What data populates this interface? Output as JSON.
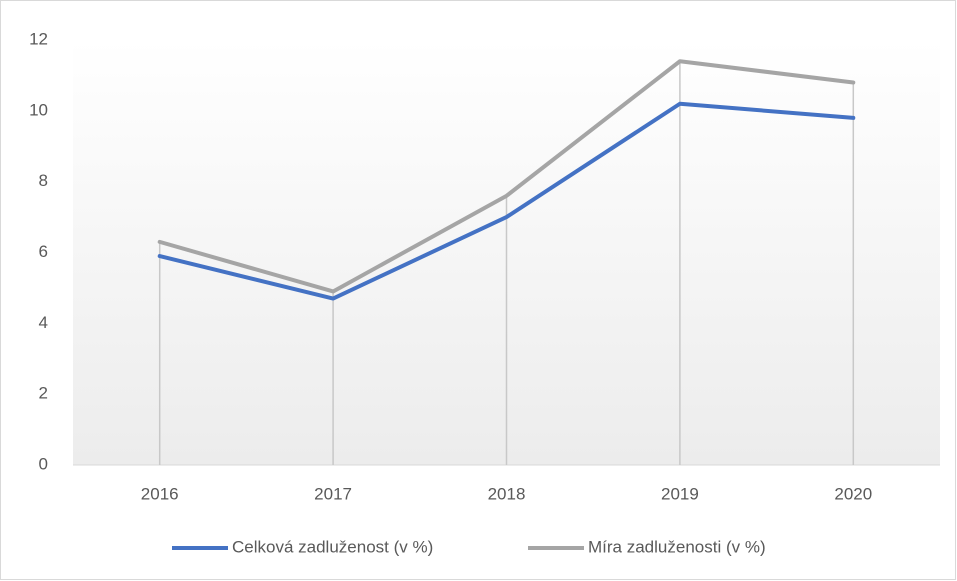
{
  "chart_data": {
    "type": "line",
    "categories": [
      "2016",
      "2017",
      "2018",
      "2019",
      "2020"
    ],
    "series": [
      {
        "name": "Celková zadluženost (v %)",
        "color": "#4472c4",
        "values": [
          5.9,
          4.7,
          7.0,
          10.2,
          9.8
        ]
      },
      {
        "name": "Míra zadluženosti (v %)",
        "color": "#a5a5a5",
        "values": [
          6.3,
          4.9,
          7.6,
          11.4,
          10.8
        ]
      }
    ],
    "ylim": [
      0,
      12
    ],
    "yticks": [
      0,
      2,
      4,
      6,
      8,
      10,
      12
    ],
    "drop_lines": true,
    "legend": "bottom"
  }
}
